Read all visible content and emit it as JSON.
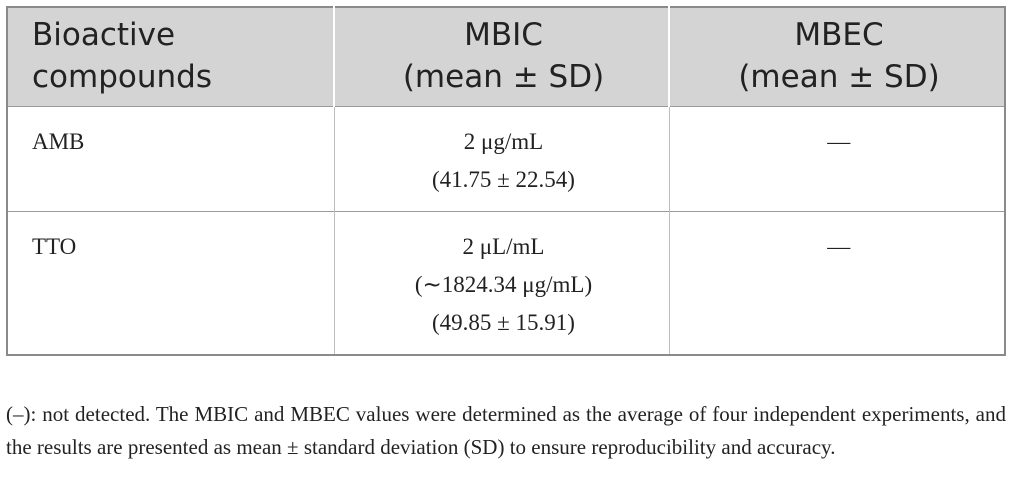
{
  "table": {
    "headers": [
      [
        "Bioactive",
        "compounds"
      ],
      [
        "MBIC",
        "(mean ± SD)"
      ],
      [
        "MBEC",
        "(mean ± SD)"
      ]
    ],
    "rows": [
      {
        "compound": "AMB",
        "mbic": [
          "2 μg/mL",
          "(41.75 ± 22.54)"
        ],
        "mbec": "—"
      },
      {
        "compound": "TTO",
        "mbic": [
          "2 μL/mL",
          "(∼1824.34 μg/mL)",
          "(49.85 ± 15.91)"
        ],
        "mbec": "—"
      }
    ]
  },
  "footnote": "(–): not detected. The MBIC and MBEC values were determined as the average of four independent experiments, and the results are presented as mean ± standard deviation (SD) to ensure reproducibility and accuracy."
}
